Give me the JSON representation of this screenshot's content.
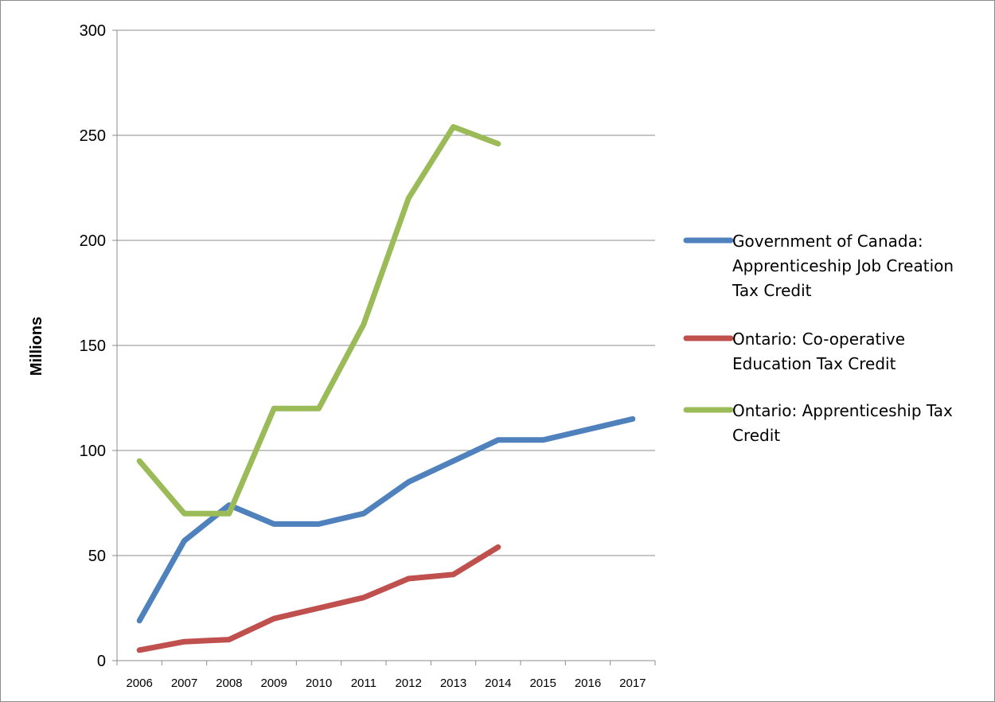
{
  "chart_data": {
    "type": "line",
    "title": "",
    "xlabel": "",
    "ylabel": "Millions",
    "ylim": [
      0,
      300
    ],
    "yticks": [
      0,
      50,
      100,
      150,
      200,
      250,
      300
    ],
    "categories": [
      "2006",
      "2007",
      "2008",
      "2009",
      "2010",
      "2011",
      "2012",
      "2013",
      "2014",
      "2015",
      "2016",
      "2017"
    ],
    "grid": "horizontal",
    "legend_position": "right",
    "series": [
      {
        "name": "Government of Canada: Apprenticeship Job Creation Tax Credit",
        "legend_lines": [
          "Government of Canada:",
          "Apprenticeship Job Creation",
          "Tax Credit"
        ],
        "color": "#4f81bd",
        "values": [
          19,
          57,
          74,
          65,
          65,
          70,
          85,
          95,
          105,
          105,
          110,
          115
        ]
      },
      {
        "name": "Ontario: Co-operative Education Tax Credit",
        "legend_lines": [
          "Ontario: Co-operative",
          "Education Tax Credit"
        ],
        "color": "#c0504d",
        "values": [
          5,
          9,
          10,
          20,
          25,
          30,
          39,
          41,
          54,
          null,
          null,
          null
        ]
      },
      {
        "name": "Ontario: Apprenticeship Tax Credit",
        "legend_lines": [
          "Ontario: Apprenticeship Tax",
          "Credit"
        ],
        "color": "#9bbb59",
        "values": [
          95,
          70,
          70,
          120,
          120,
          160,
          220,
          254,
          246,
          null,
          null,
          null
        ]
      }
    ]
  }
}
